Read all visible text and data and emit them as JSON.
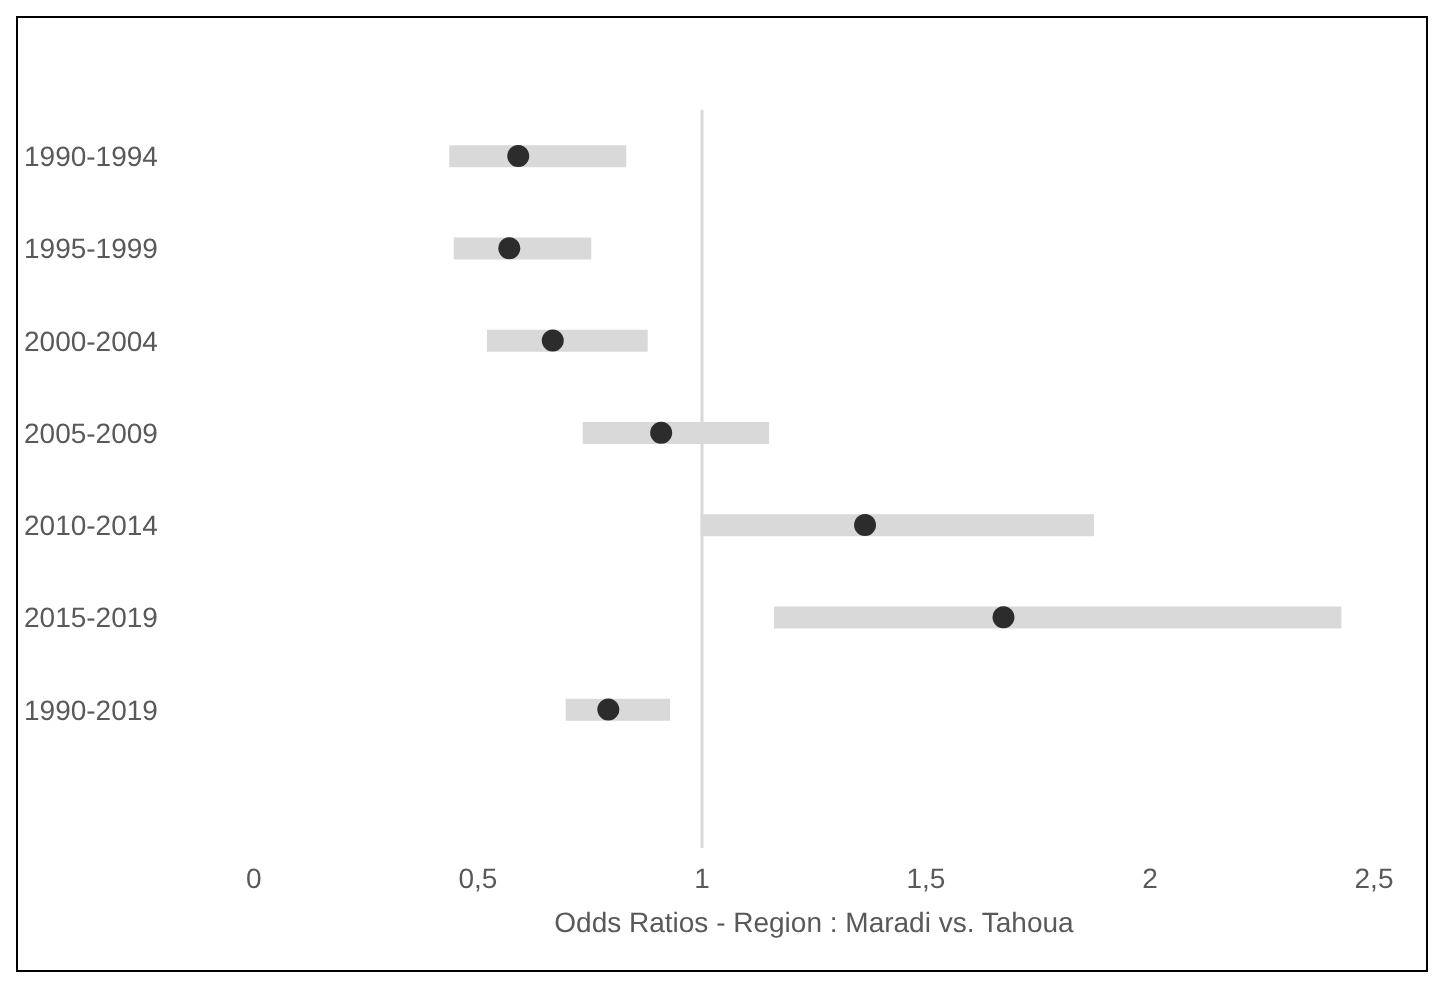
{
  "chart_data": {
    "type": "scatter",
    "orientation": "horizontal",
    "xlabel": "Odds Ratios - Region : Maradi vs. Tahoua",
    "categories": [
      "1990-1994",
      "1995-1999",
      "2000-2004",
      "2005-2009",
      "2010-2014",
      "2015-2019",
      "1990-2019",
      null
    ],
    "series": [
      {
        "color": "#000000",
        "values": [
          0.59,
          0.57,
          0.667,
          0.909,
          1.364,
          1.673,
          0.791,
          null
        ],
        "errors": [
          [
            0.436,
            0.831
          ],
          [
            0.446,
            0.753
          ],
          [
            0.52,
            0.879
          ],
          [
            0.734,
            1.15
          ],
          [
            0.997,
            1.875
          ],
          [
            1.161,
            2.427
          ],
          [
            0.696,
            0.929
          ],
          null
        ]
      }
    ],
    "xlim": [
      0,
      2.5
    ],
    "xticks": [
      0,
      {
        "value": 0.5,
        "label": "0,5"
      },
      1,
      {
        "value": 1.5,
        "label": "1,5"
      },
      2,
      {
        "value": 2.5,
        "label": "2,5"
      }
    ],
    "ref_lines": [
      {
        "axis": "x",
        "value": 1,
        "color": "#d9d9d9"
      }
    ],
    "grid": false,
    "marker": "circle"
  }
}
